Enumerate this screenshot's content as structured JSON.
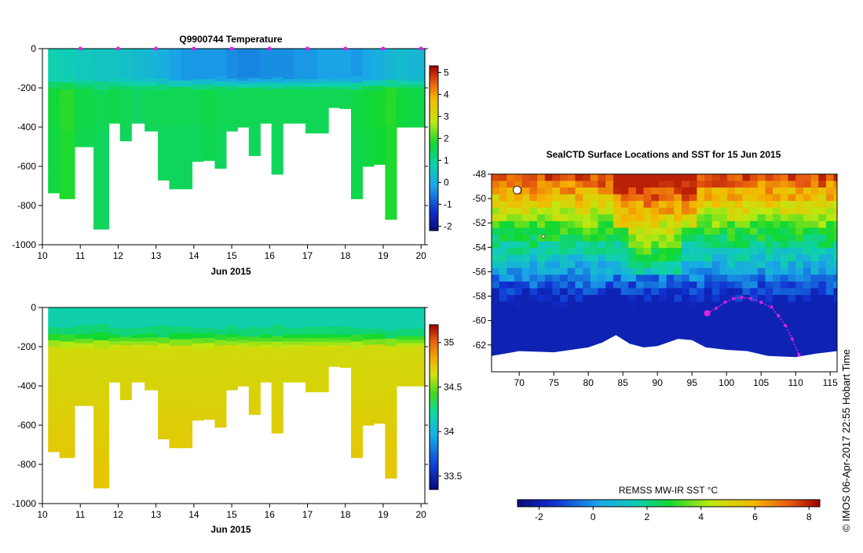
{
  "chart_data": [
    {
      "type": "heatmap",
      "title": "Q9900744  Temperature",
      "xlabel": "Jun 2015",
      "ylabel": "",
      "x_ticks": [
        "10",
        "11",
        "12",
        "13",
        "14",
        "15",
        "16",
        "17",
        "18",
        "19",
        "20"
      ],
      "xlim": [
        10,
        20.1
      ],
      "y_ticks": [
        "0",
        "-200",
        "-400",
        "-600",
        "-800",
        "-1000"
      ],
      "ylim": [
        -1000,
        0
      ],
      "colorbar": {
        "ticks": [
          "5",
          "4",
          "3",
          "2",
          "1",
          "0",
          "-1",
          "-2"
        ],
        "range": [
          -2.2,
          5.3
        ]
      },
      "profile_markers": [
        11,
        12,
        13,
        14,
        15,
        16,
        17,
        18,
        19,
        20
      ],
      "profile_days": [
        10.3,
        10.6,
        11.1,
        11.6,
        11.9,
        12.2,
        12.5,
        12.9,
        13.2,
        13.5,
        13.8,
        14.1,
        14.4,
        14.7,
        15.0,
        15.3,
        15.6,
        15.9,
        16.2,
        16.5,
        16.8,
        17.1,
        17.4,
        17.7,
        18.0,
        18.3,
        18.6,
        18.9,
        19.2,
        19.5,
        19.8
      ],
      "profile_depths": [
        -735,
        -765,
        -500,
        -920,
        -380,
        -470,
        -380,
        -420,
        -670,
        -715,
        -715,
        -575,
        -570,
        -610,
        -420,
        -400,
        -545,
        -380,
        -640,
        -380,
        -380,
        -430,
        -430,
        -300,
        -305,
        -765,
        -600,
        -590,
        -870,
        -400,
        -400
      ],
      "surface_temps": [
        0.8,
        0.7,
        0.6,
        0.5,
        0.5,
        0.4,
        0.3,
        0.2,
        0.0,
        -0.2,
        -0.3,
        -0.3,
        -0.3,
        -0.3,
        -0.4,
        -0.5,
        -0.5,
        -0.4,
        -0.4,
        -0.4,
        -0.3,
        -0.3,
        -0.2,
        -0.2,
        -0.2,
        -0.3,
        -0.1,
        0.0,
        0.2,
        0.3,
        0.2
      ],
      "deep_temps": [
        1.7,
        1.9,
        1.6,
        1.5,
        1.6,
        1.5,
        1.4,
        1.5,
        1.5,
        1.5,
        1.5,
        1.5,
        1.6,
        1.5,
        1.5,
        1.5,
        1.5,
        1.5,
        1.5,
        1.5,
        1.5,
        1.5,
        1.5,
        1.5,
        1.5,
        1.6,
        1.7,
        1.8,
        1.9,
        1.7,
        1.6
      ],
      "thermocline_depth": -150
    },
    {
      "type": "heatmap",
      "title": "",
      "xlabel": "Jun 2015",
      "ylabel": "",
      "x_ticks": [
        "10",
        "11",
        "12",
        "13",
        "14",
        "15",
        "16",
        "17",
        "18",
        "19",
        "20"
      ],
      "xlim": [
        10,
        20.1
      ],
      "y_ticks": [
        "0",
        "-200",
        "-400",
        "-600",
        "-800",
        "-1000"
      ],
      "ylim": [
        -1000,
        0
      ],
      "colorbar": {
        "ticks": [
          "35",
          "34.5",
          "34",
          "33.5"
        ],
        "range": [
          33.35,
          35.2
        ]
      },
      "surface_salinity": 34.1,
      "deep_salinity_range": [
        34.65,
        34.75
      ]
    },
    {
      "type": "heatmap",
      "title": "SealCTD Surface Locations and SST for 15 Jun 2015",
      "xlabel": "",
      "ylabel": "",
      "x_ticks": [
        "70",
        "75",
        "80",
        "85",
        "90",
        "95",
        "100",
        "105",
        "110",
        "115"
      ],
      "xlim": [
        66,
        116
      ],
      "y_ticks": [
        "-48",
        "-50",
        "-52",
        "-54",
        "-56",
        "-58",
        "-60",
        "-62"
      ],
      "ylim": [
        -64.2,
        -48
      ],
      "colorbar": {
        "label": "REMSS MW-IR SST °C",
        "ticks": [
          "-2",
          "0",
          "2",
          "4",
          "6",
          "8"
        ],
        "range": [
          -2.8,
          8.4
        ]
      },
      "track": {
        "lon": [
          97.2,
          98.5,
          99.8,
          101.0,
          102.2,
          103.5,
          105.0,
          106.5,
          107.5,
          108.5,
          109.5,
          110.5
        ],
        "lat": [
          -59.4,
          -59.0,
          -58.5,
          -58.2,
          -58.1,
          -58.2,
          -58.5,
          -58.9,
          -59.6,
          -60.4,
          -61.5,
          -62.8
        ]
      },
      "current_location": {
        "lon": 97.2,
        "lat": -59.4
      }
    }
  ],
  "stamp": "© IMOS 06-Apr-2017 22:55 Hobart Time"
}
